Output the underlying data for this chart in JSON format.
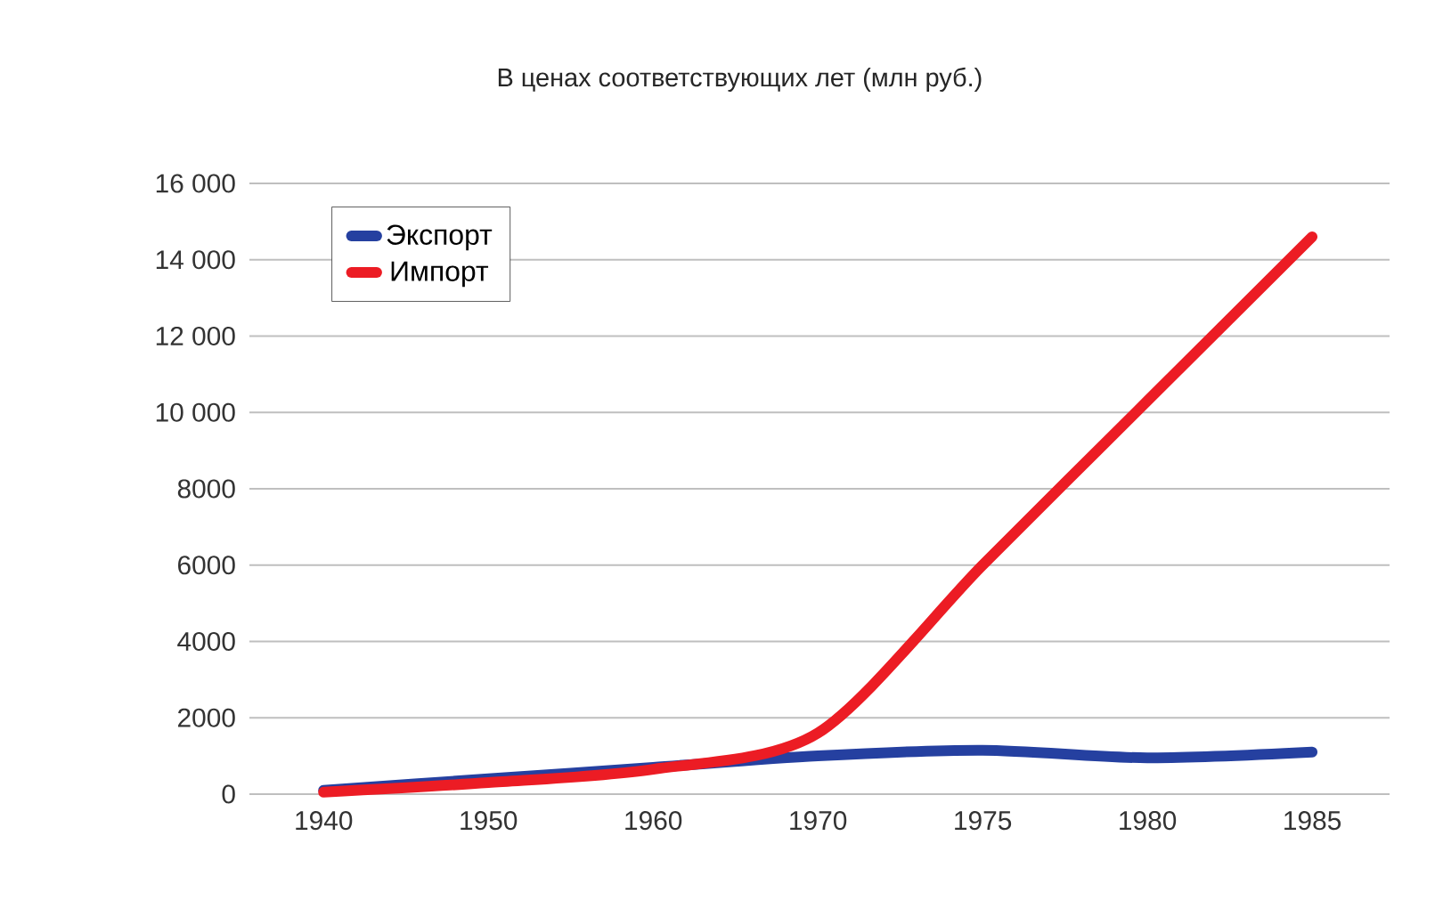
{
  "chart_data": {
    "type": "line",
    "title": "В ценах соответствующих лет (млн руб.)",
    "categories": [
      "1940",
      "1950",
      "1960",
      "1970",
      "1975",
      "1980",
      "1985"
    ],
    "series": [
      {
        "name": "Экспорт",
        "color": "#2540a0",
        "values": [
          100,
          400,
          700,
          1000,
          1150,
          950,
          1100
        ]
      },
      {
        "name": "Импорт",
        "color": "#ec1c24",
        "values": [
          50,
          300,
          650,
          1600,
          6000,
          10300,
          14600
        ]
      }
    ],
    "ylim": [
      0,
      16000
    ],
    "yticks": [
      0,
      2000,
      4000,
      6000,
      8000,
      {
        "value": 10000,
        "label": "10 000"
      },
      {
        "value": 12000,
        "label": "12 000"
      },
      {
        "value": 14000,
        "label": "14 000"
      },
      {
        "value": 16000,
        "label": "16 000"
      }
    ],
    "grid": "y",
    "legend": "top left",
    "marker": "none",
    "line_style": "solid"
  }
}
